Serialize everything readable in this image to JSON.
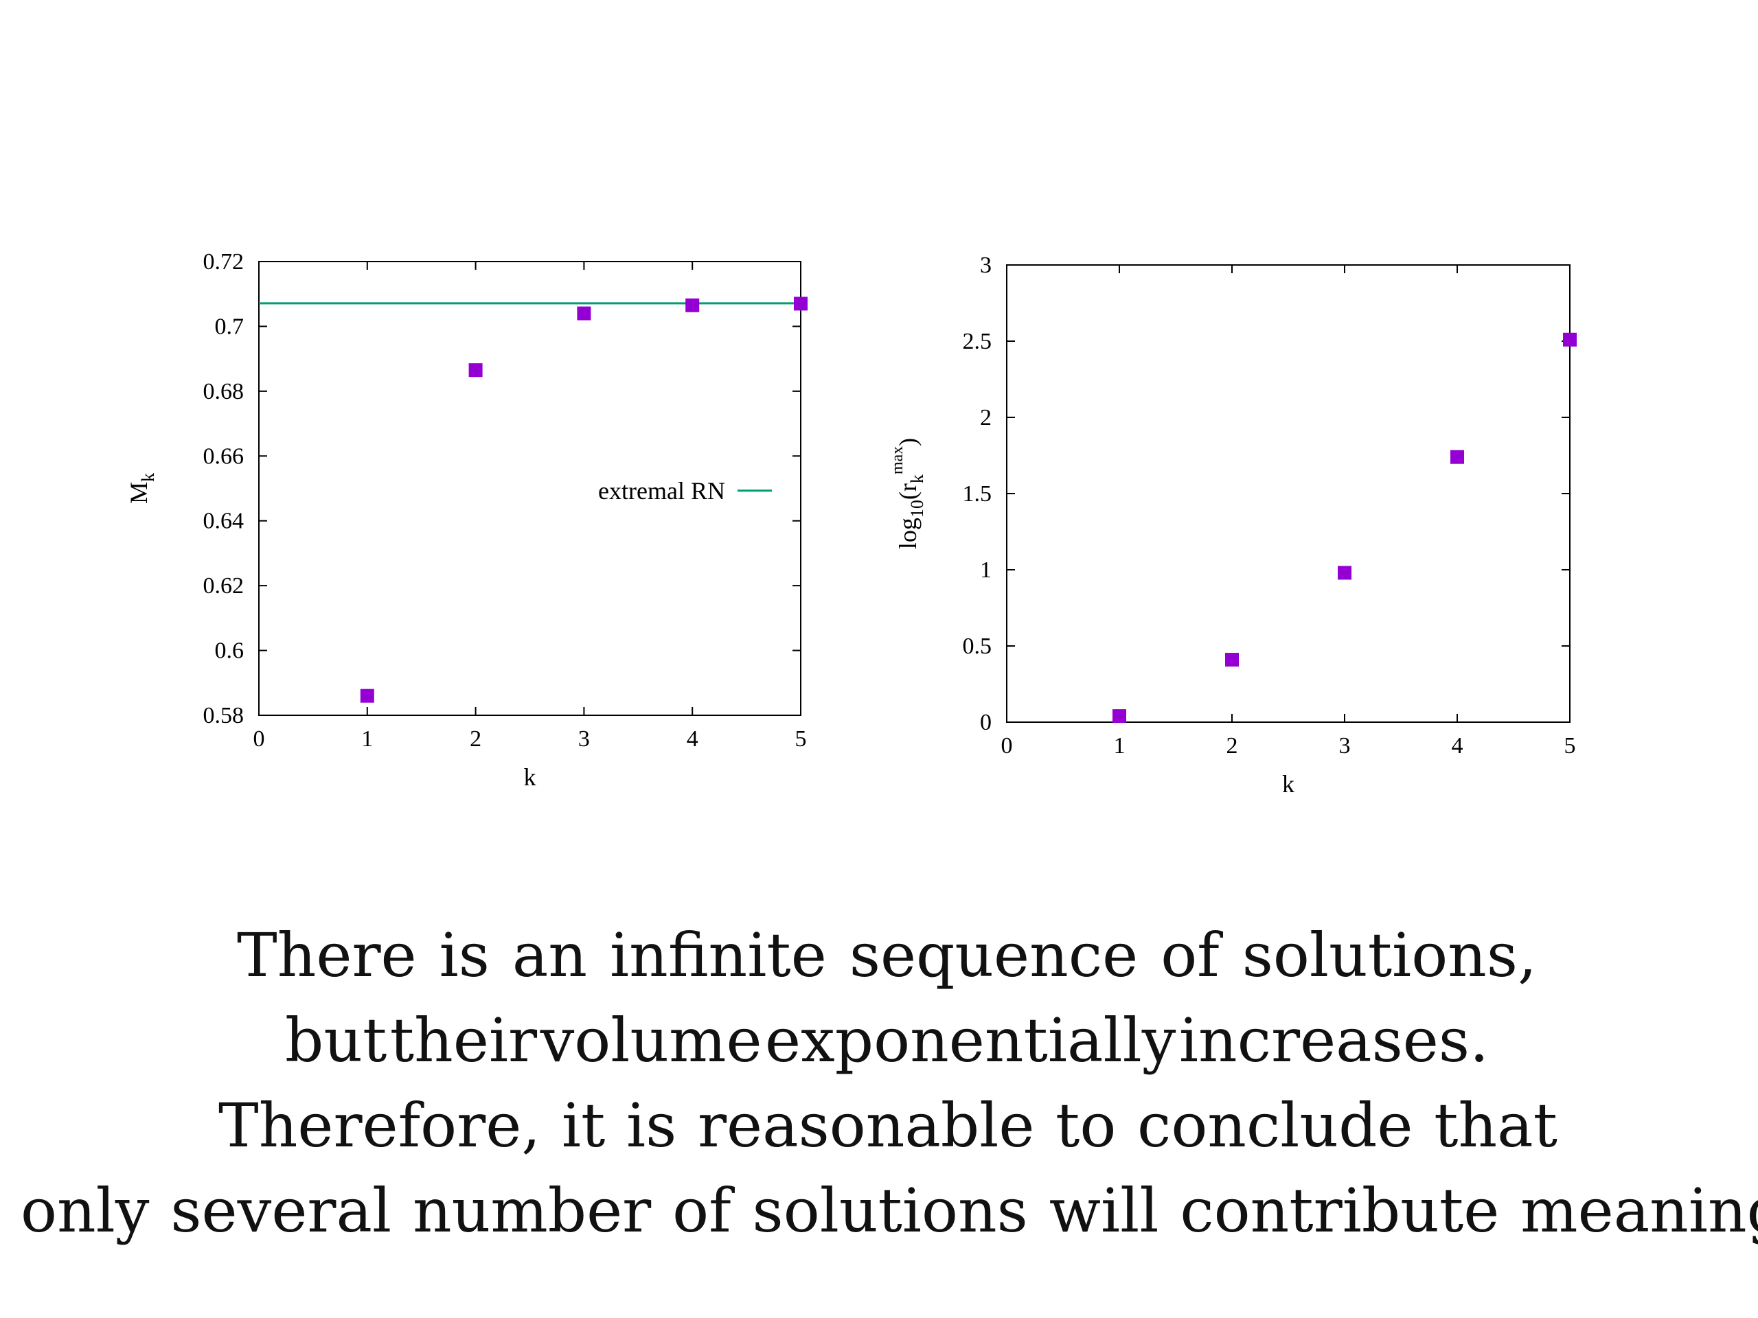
{
  "chart_data": [
    {
      "type": "scatter",
      "xlabel": "k",
      "ylabel": "M_k",
      "xlim": [
        0,
        5
      ],
      "ylim": [
        0.58,
        0.72
      ],
      "xticks": [
        "0",
        "1",
        "2",
        "3",
        "4",
        "5"
      ],
      "yticks": [
        "0.58",
        "0.6",
        "0.62",
        "0.64",
        "0.66",
        "0.68",
        "0.7",
        "0.72"
      ],
      "series": [
        {
          "name": "",
          "color": "#9400d3",
          "x": [
            1,
            2,
            3,
            4,
            5
          ],
          "y": [
            0.586,
            0.6865,
            0.704,
            0.7065,
            0.707
          ]
        }
      ],
      "reference_line": {
        "name": "extremal RN",
        "y": 0.7071,
        "color": "#009e73"
      },
      "legend_position": "center-right",
      "grid": false
    },
    {
      "type": "scatter",
      "xlabel": "k",
      "ylabel": "log10(r_k^max)",
      "xlim": [
        0,
        5
      ],
      "ylim": [
        0,
        3
      ],
      "xticks": [
        "0",
        "1",
        "2",
        "3",
        "4",
        "5"
      ],
      "yticks": [
        "0",
        "0.5",
        "1",
        "1.5",
        "2",
        "2.5",
        "3"
      ],
      "series": [
        {
          "name": "",
          "color": "#9400d3",
          "x": [
            1,
            2,
            3,
            4,
            5
          ],
          "y": [
            0.04,
            0.41,
            0.98,
            1.74,
            2.51
          ]
        }
      ],
      "grid": false
    }
  ],
  "caption": {
    "lines": [
      [
        "There",
        "is",
        "an",
        "infinite",
        "sequence",
        "of",
        "solutions,"
      ],
      [
        "but",
        "their",
        "volume",
        "exponentially",
        "increases."
      ],
      [
        "Therefore,",
        "it",
        "is",
        "reasonable",
        "to",
        "conclude",
        "that"
      ],
      [
        "only",
        "several",
        "number",
        "of",
        "solutions",
        "will",
        "contribute",
        "meaning"
      ]
    ]
  }
}
